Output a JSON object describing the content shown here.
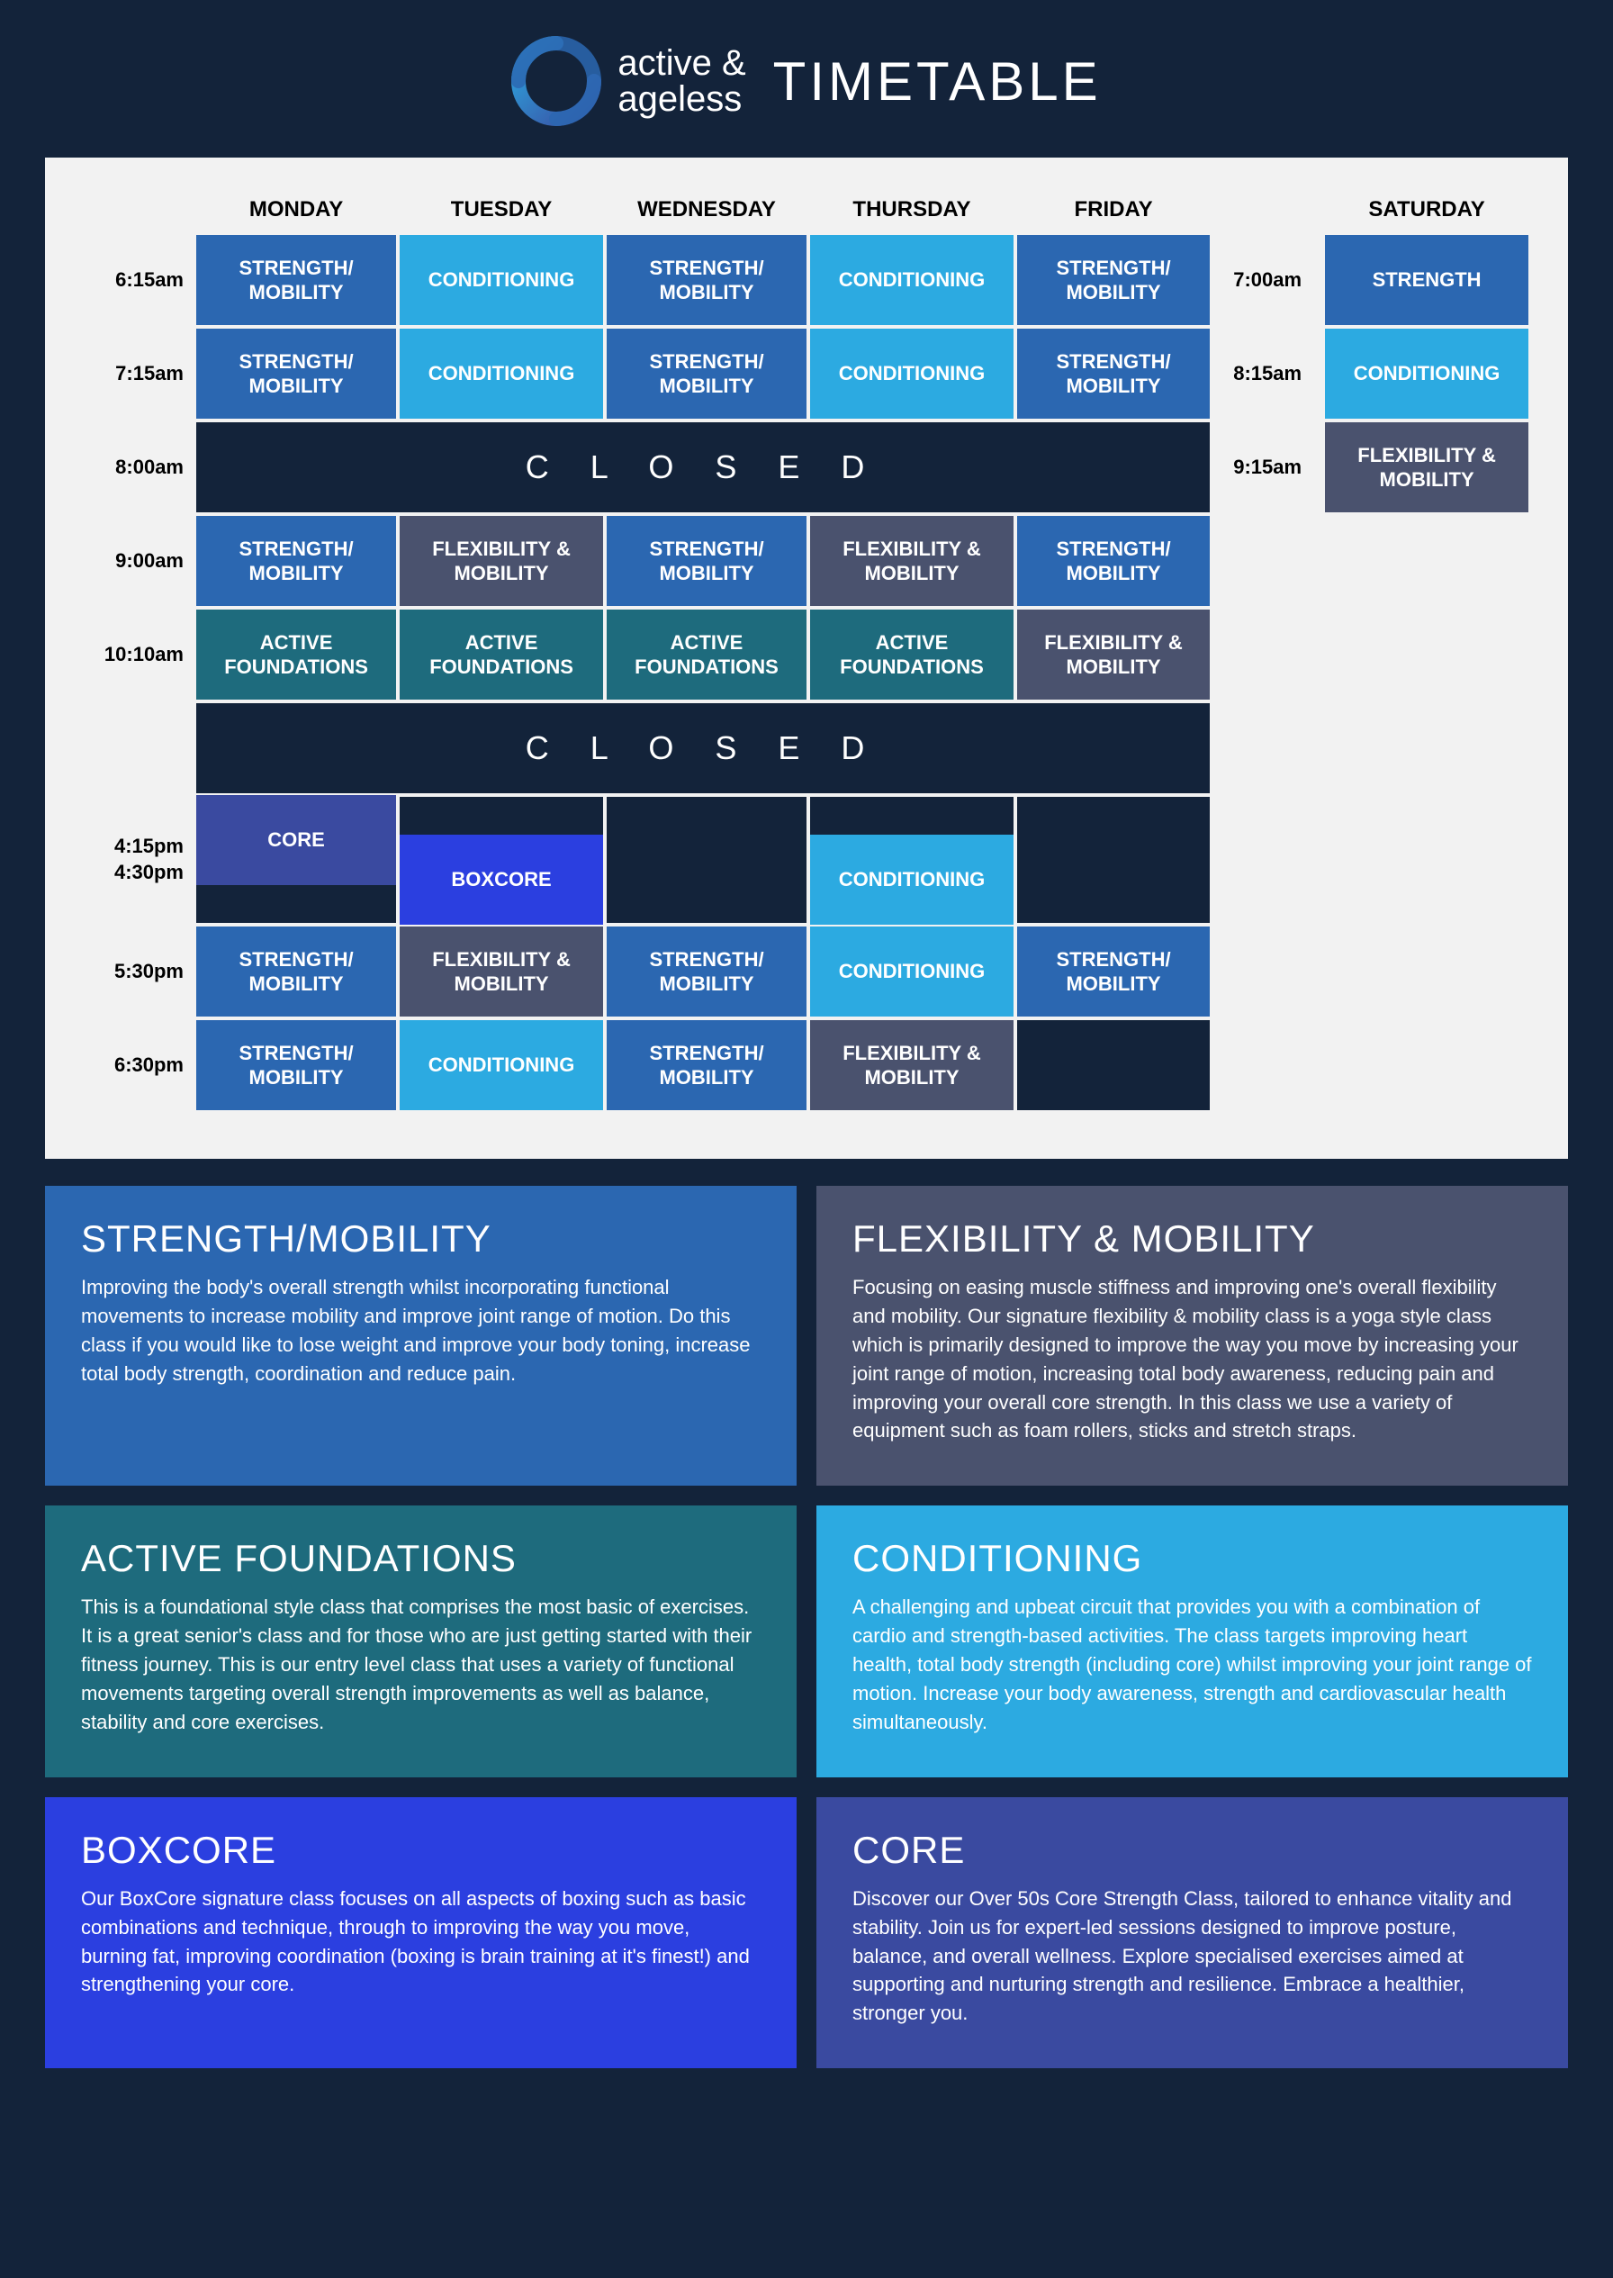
{
  "brand": {
    "line1": "active &",
    "line2": "ageless"
  },
  "title": "TIMETABLE",
  "colors": {
    "page_bg": "#13233a",
    "table_bg": "#f2f2f2",
    "strength": "#2b67b1",
    "conditioning": "#2caae1",
    "flexibility": "#4a526e",
    "foundations": "#1e6b7d",
    "boxcore": "#2b3fe0",
    "core": "#3a4aa0",
    "dark": "#13233a"
  },
  "days": [
    "MONDAY",
    "TUESDAY",
    "WEDNESDAY",
    "THURSDAY",
    "FRIDAY",
    "SATURDAY"
  ],
  "closed_label": "C L O S E D",
  "weekday_rows": [
    {
      "time": "6:15am",
      "cells": [
        {
          "t": "STRENGTH/\nMOBILITY",
          "c": "strength"
        },
        {
          "t": "CONDITIONING",
          "c": "conditioning"
        },
        {
          "t": "STRENGTH/\nMOBILITY",
          "c": "strength"
        },
        {
          "t": "CONDITIONING",
          "c": "conditioning"
        },
        {
          "t": "STRENGTH/\nMOBILITY",
          "c": "strength"
        }
      ]
    },
    {
      "time": "7:15am",
      "cells": [
        {
          "t": "STRENGTH/\nMOBILITY",
          "c": "strength"
        },
        {
          "t": "CONDITIONING",
          "c": "conditioning"
        },
        {
          "t": "STRENGTH/\nMOBILITY",
          "c": "strength"
        },
        {
          "t": "CONDITIONING",
          "c": "conditioning"
        },
        {
          "t": "STRENGTH/\nMOBILITY",
          "c": "strength"
        }
      ]
    },
    {
      "time": "8:00am",
      "closed": true
    },
    {
      "time": "9:00am",
      "cells": [
        {
          "t": "STRENGTH/\nMOBILITY",
          "c": "strength"
        },
        {
          "t": "FLEXIBILITY &\nMOBILITY",
          "c": "flexibility"
        },
        {
          "t": "STRENGTH/\nMOBILITY",
          "c": "strength"
        },
        {
          "t": "FLEXIBILITY &\nMOBILITY",
          "c": "flexibility"
        },
        {
          "t": "STRENGTH/\nMOBILITY",
          "c": "strength"
        }
      ]
    },
    {
      "time": "10:10am",
      "cells": [
        {
          "t": "ACTIVE\nFOUNDATIONS",
          "c": "foundations"
        },
        {
          "t": "ACTIVE\nFOUNDATIONS",
          "c": "foundations"
        },
        {
          "t": "ACTIVE\nFOUNDATIONS",
          "c": "foundations"
        },
        {
          "t": "ACTIVE\nFOUNDATIONS",
          "c": "foundations"
        },
        {
          "t": "FLEXIBILITY &\nMOBILITY",
          "c": "flexibility"
        }
      ]
    }
  ],
  "afternoon": {
    "closed_row": true,
    "row415_time": "4:15pm\n4:30pm",
    "row415_cells": [
      {
        "t": "CORE",
        "c": "core",
        "top": true
      },
      {
        "t": "BOXCORE",
        "c": "boxcore",
        "top": false
      },
      null,
      {
        "t": "CONDITIONING",
        "c": "conditioning",
        "top": false
      },
      null
    ],
    "row530": {
      "time": "5:30pm",
      "cells": [
        {
          "t": "STRENGTH/\nMOBILITY",
          "c": "strength"
        },
        {
          "t": "FLEXIBILITY &\nMOBILITY",
          "c": "flexibility"
        },
        {
          "t": "STRENGTH/\nMOBILITY",
          "c": "strength"
        },
        {
          "t": "CONDITIONING",
          "c": "conditioning"
        },
        {
          "t": "STRENGTH/\nMOBILITY",
          "c": "strength"
        }
      ]
    },
    "row630": {
      "time": "6:30pm",
      "cells": [
        {
          "t": "STRENGTH/\nMOBILITY",
          "c": "strength"
        },
        {
          "t": "CONDITIONING",
          "c": "conditioning"
        },
        {
          "t": "STRENGTH/\nMOBILITY",
          "c": "strength"
        },
        {
          "t": "FLEXIBILITY &\nMOBILITY",
          "c": "flexibility"
        },
        null
      ]
    }
  },
  "saturday": [
    {
      "time": "7:00am",
      "t": "STRENGTH",
      "c": "strength"
    },
    {
      "time": "8:15am",
      "t": "CONDITIONING",
      "c": "conditioning"
    },
    {
      "time": "9:15am",
      "t": "FLEXIBILITY &\nMOBILITY",
      "c": "flexibility"
    }
  ],
  "descriptions": [
    {
      "title": "STRENGTH/MOBILITY",
      "c": "strength",
      "body": "Improving the body's overall strength whilst incorporating functional movements to increase mobility and improve joint range of motion. Do this class if you would like to lose weight and improve your body toning, increase total body strength, coordination and reduce pain."
    },
    {
      "title": "FLEXIBILITY & MOBILITY",
      "c": "flexibility",
      "body": "Focusing on easing muscle stiffness and improving one's overall flexibility and mobility. Our signature flexibility & mobility class is a yoga style class which is primarily designed to improve the way you move by increasing your joint range of motion, increasing total body awareness, reducing pain and improving your overall core strength. In this class we use a variety of equipment such as foam rollers, sticks and stretch straps."
    },
    {
      "title": "ACTIVE FOUNDATIONS",
      "c": "foundations",
      "body": "This is a foundational style class that comprises the most basic of exercises. It is a great senior's class and for those who are just getting started with their fitness journey. This is our entry level class that uses a variety of functional movements targeting overall strength improvements as well as balance, stability and core exercises."
    },
    {
      "title": "CONDITIONING",
      "c": "conditioning",
      "body": "A challenging and upbeat circuit that provides you with a combination of cardio and strength-based activities. The class targets improving heart health, total body strength (including core) whilst improving your joint range of motion. Increase your body awareness, strength and cardiovascular health simultaneously."
    },
    {
      "title": "BOXCORE",
      "c": "boxcore",
      "body": "Our BoxCore signature class focuses on all aspects of boxing such as basic combinations and technique, through to improving the way you move, burning fat, improving coordination (boxing is brain training at it's finest!) and strengthening your core."
    },
    {
      "title": "CORE",
      "c": "core",
      "body": "Discover our Over 50s Core Strength Class, tailored to enhance vitality and stability. Join us for expert-led sessions designed to improve posture, balance, and overall wellness. Explore specialised exercises aimed at supporting and  nurturing strength and resilience. Embrace a healthier, stronger you."
    }
  ]
}
